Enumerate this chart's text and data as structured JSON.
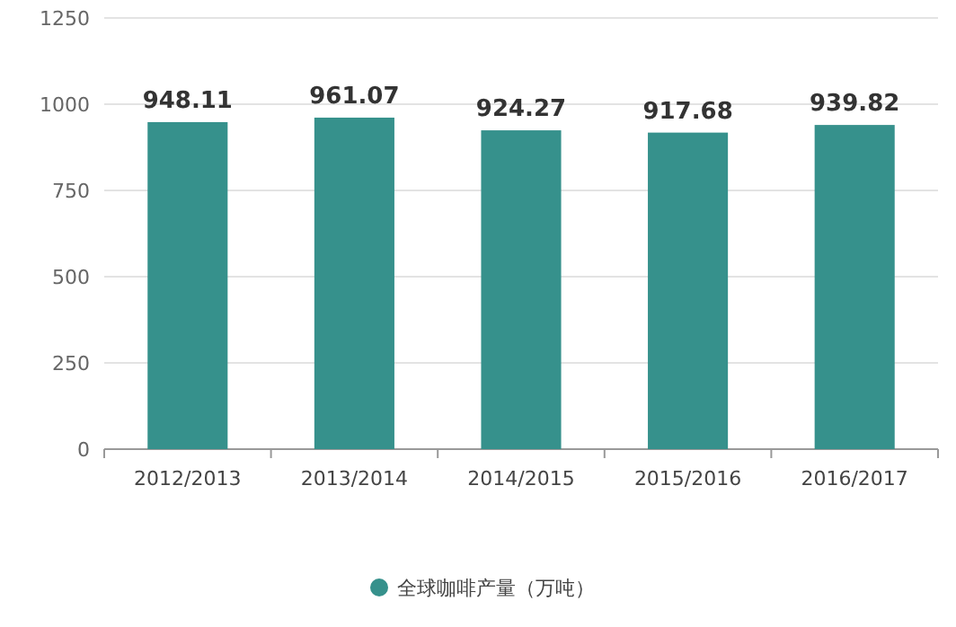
{
  "chart_data": {
    "type": "bar",
    "categories": [
      "2012/2013",
      "2013/2014",
      "2014/2015",
      "2015/2016",
      "2016/2017"
    ],
    "series": [
      {
        "name": "全球咖啡产量（万吨）",
        "color": "#36918c",
        "values": [
          948.11,
          961.07,
          924.27,
          917.68,
          939.82
        ]
      }
    ],
    "ylim": [
      0,
      1250
    ],
    "yticks": [
      0,
      250,
      500,
      750,
      1000,
      1250
    ],
    "grid": "y",
    "data_labels": true,
    "legend": "bottom"
  }
}
